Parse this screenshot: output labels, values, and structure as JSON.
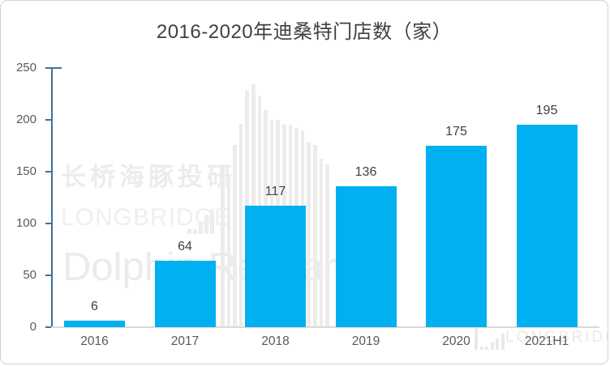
{
  "chart_data": {
    "type": "bar",
    "title": "2016-2020年迪桑特门店数（家）",
    "categories": [
      "2016",
      "2017",
      "2018",
      "2019",
      "2020",
      "2021H1"
    ],
    "values": [
      6,
      64,
      117,
      136,
      175,
      195
    ],
    "xlabel": "",
    "ylabel": "",
    "ylim": [
      0,
      250
    ],
    "yticks": [
      0,
      50,
      100,
      150,
      200,
      250
    ],
    "grid": false,
    "legend": false,
    "data_labels_shown": true,
    "bar_color": "#00b0f0",
    "value_label_color": "#404040",
    "tick_label_color": "#595959",
    "y_axis_line_color": "#41719c",
    "baseline_color": "#d9d9d9",
    "title_color": "#404040"
  },
  "watermarks": {
    "cn_text": "长桥海豚投研",
    "brand_text": "LONGBRIDGE",
    "research_text": "Dolphin Research",
    "corner_text": "LONGBRIDGE",
    "color": "#ececec",
    "waveform_bar_tops": [
      202,
      215,
      178,
      152,
      110,
      103,
      117,
      135,
      148,
      147,
      153,
      153,
      157,
      160,
      175,
      178,
      195,
      202
    ],
    "mini_eq_heights": [
      6,
      6,
      15,
      24,
      31
    ],
    "corner_eq_heights": [
      27,
      4,
      4,
      9,
      14,
      20
    ]
  }
}
